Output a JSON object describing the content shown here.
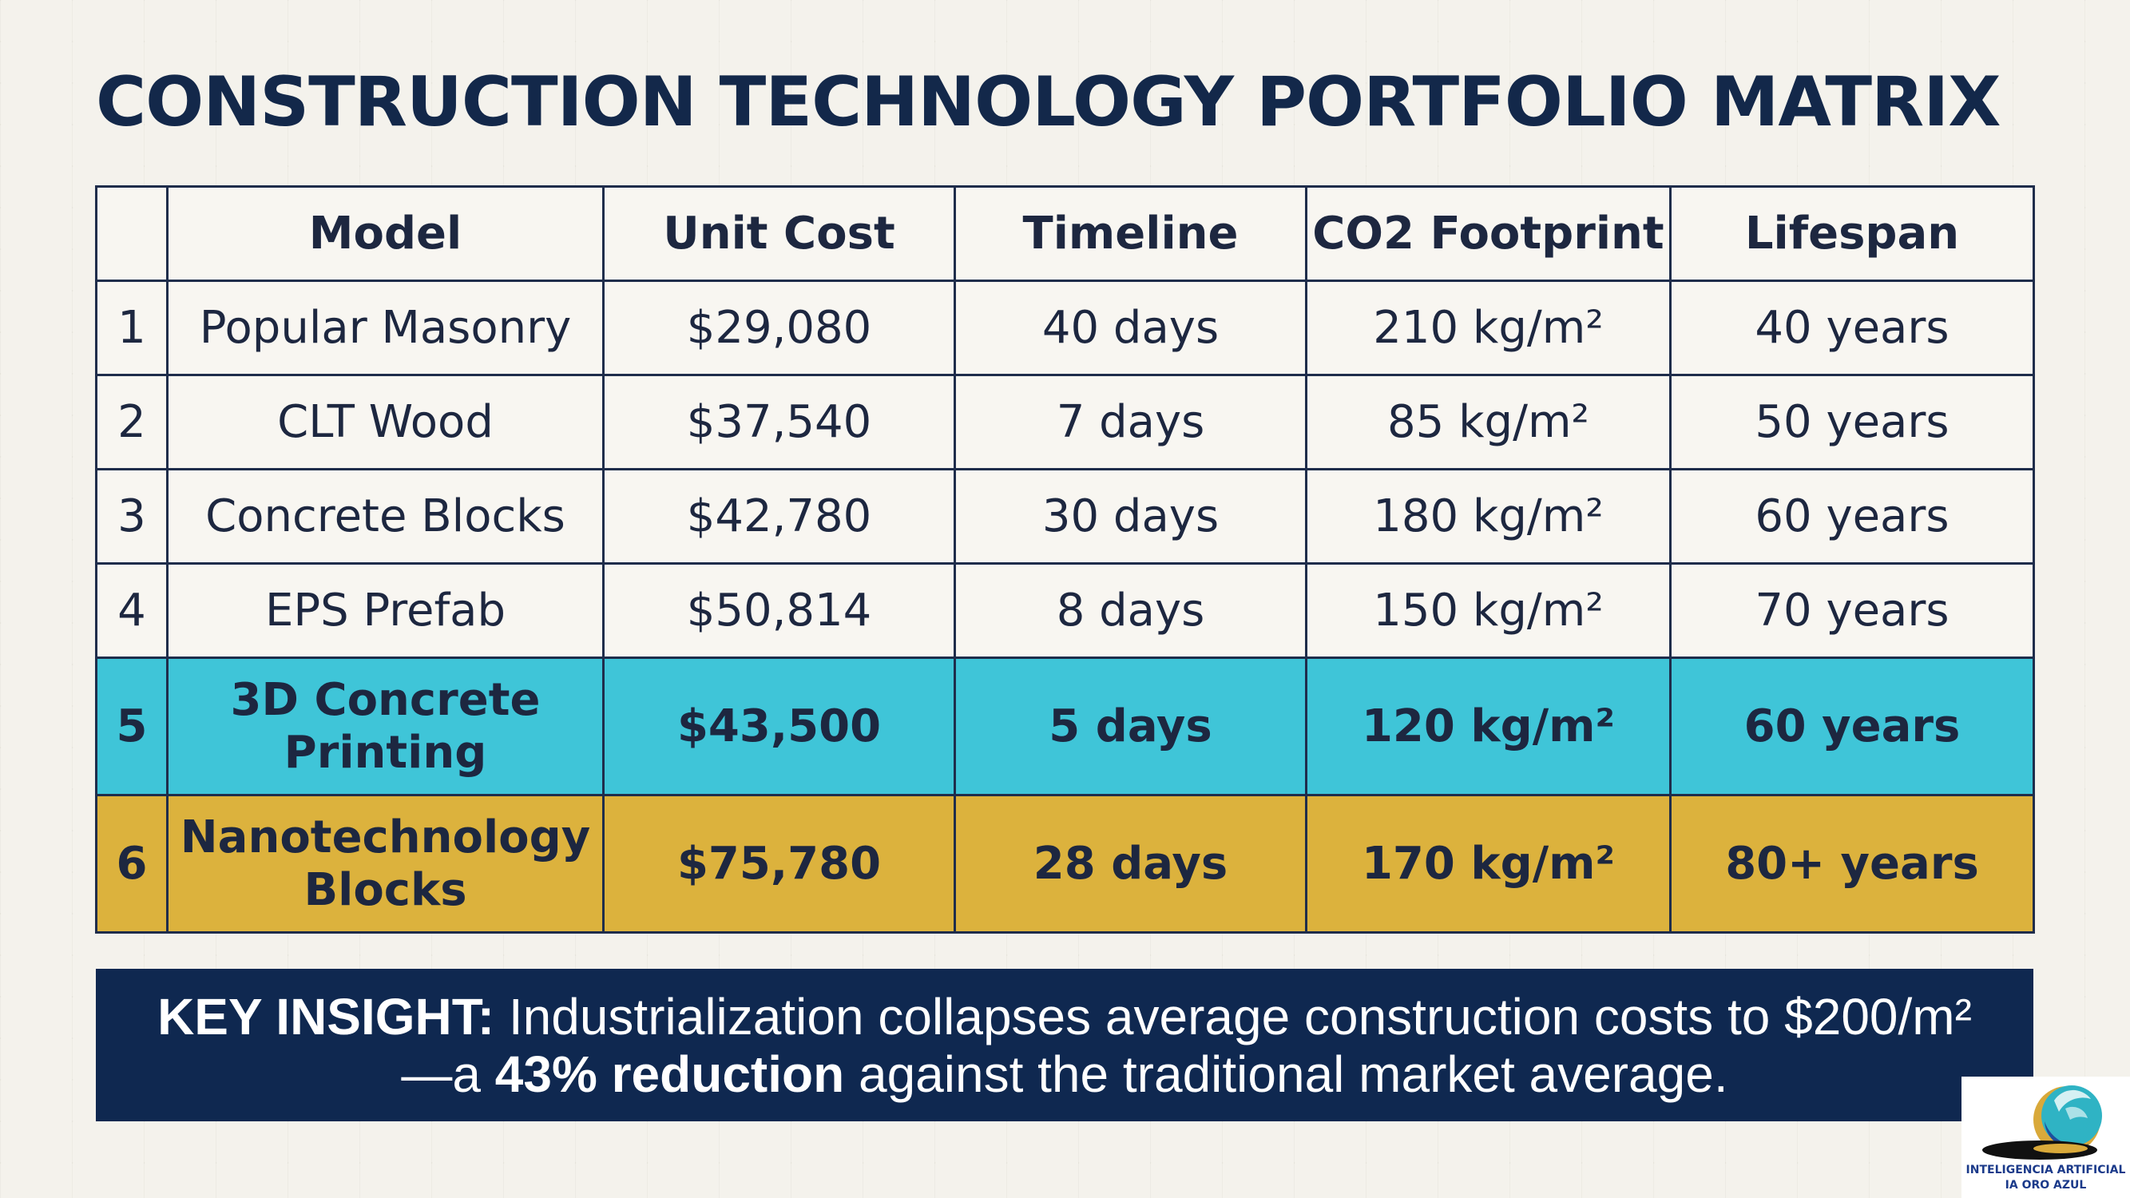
{
  "title": "CONSTRUCTION TECHNOLOGY PORTFOLIO MATRIX",
  "table": {
    "headers": [
      "",
      "Model",
      "Unit Cost",
      "Timeline",
      "CO2 Footprint",
      "Lifespan"
    ],
    "rows": [
      {
        "num": "1",
        "model": "Popular Masonry",
        "cost": "$29,080",
        "timeline": "40 days",
        "co2": "210 kg/m²",
        "lifespan": "40 years"
      },
      {
        "num": "2",
        "model": "CLT Wood",
        "cost": "$37,540",
        "timeline": "7 days",
        "co2": "85 kg/m²",
        "lifespan": "50 years"
      },
      {
        "num": "3",
        "model": "Concrete Blocks",
        "cost": "$42,780",
        "timeline": "30 days",
        "co2": "180 kg/m²",
        "lifespan": "60 years"
      },
      {
        "num": "4",
        "model": "EPS Prefab",
        "cost": "$50,814",
        "timeline": "8 days",
        "co2": "150 kg/m²",
        "lifespan": "70 years"
      },
      {
        "num": "5",
        "model_line1": "3D Concrete",
        "model_line2": "Printing",
        "cost": "$43,500",
        "timeline": "5 days",
        "co2": "120 kg/m²",
        "lifespan": "60 years",
        "highlight": "#3fc5d8"
      },
      {
        "num": "6",
        "model_line1": "Nanotechnology",
        "model_line2": "Blocks",
        "cost": "$75,780",
        "timeline": "28 days",
        "co2": "170 kg/m²",
        "lifespan": "80+ years",
        "highlight": "#dcb23d"
      }
    ]
  },
  "insight": {
    "label": "KEY INSIGHT:",
    "text1": " Industrialization collapses average construction costs to $200/m²—a ",
    "emphasis": "43% reduction",
    "text2": " against the traditional market average."
  },
  "logo": {
    "line1": "INTELIGENCIA ARTIFICIAL",
    "line2": "IA ORO AZUL"
  },
  "colors": {
    "title": "#13284a",
    "grid": "#1f2d4b",
    "row_cyan": "#3fc5d8",
    "row_gold": "#dcb23d",
    "insight_bg": "#0f2850"
  }
}
